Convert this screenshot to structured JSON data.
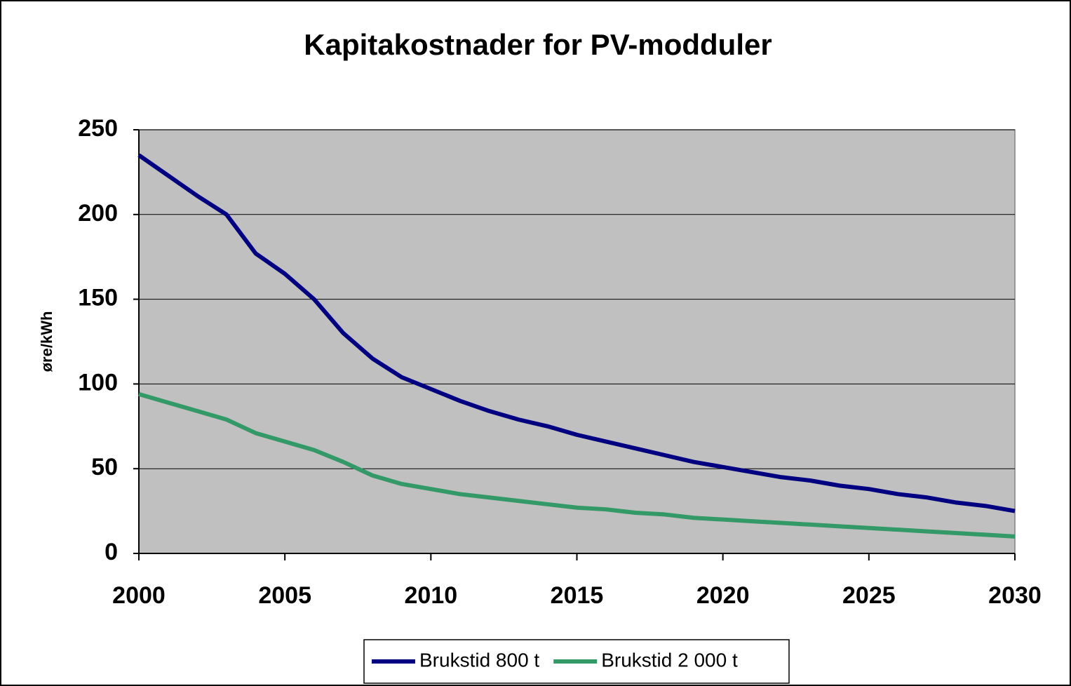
{
  "chart_data": {
    "type": "line",
    "title": "Kapitakostnader for PV-modduler",
    "ylabel": "øre/kWh",
    "x": [
      2000,
      2001,
      2002,
      2003,
      2004,
      2005,
      2006,
      2007,
      2008,
      2009,
      2010,
      2011,
      2012,
      2013,
      2014,
      2015,
      2016,
      2017,
      2018,
      2019,
      2020,
      2021,
      2022,
      2023,
      2024,
      2025,
      2026,
      2027,
      2028,
      2029,
      2030
    ],
    "series": [
      {
        "name": "Brukstid 800 t",
        "color": "#000080",
        "values": [
          235,
          223,
          211,
          200,
          177,
          165,
          150,
          130,
          115,
          104,
          97,
          90,
          84,
          79,
          75,
          70,
          66,
          62,
          58,
          54,
          51,
          48,
          45,
          43,
          40,
          38,
          35,
          33,
          30,
          28,
          25
        ]
      },
      {
        "name": "Brukstid 2 000 t",
        "color": "#339966",
        "values": [
          94,
          89,
          84,
          79,
          71,
          66,
          61,
          54,
          46,
          41,
          38,
          35,
          33,
          31,
          29,
          27,
          26,
          24,
          23,
          21,
          20,
          19,
          18,
          17,
          16,
          15,
          14,
          13,
          12,
          11,
          10
        ]
      }
    ],
    "xlim": [
      2000,
      2030
    ],
    "xticks": [
      2000,
      2005,
      2010,
      2015,
      2020,
      2025,
      2030
    ],
    "ylim": [
      0,
      250
    ],
    "yticks": [
      0,
      50,
      100,
      150,
      200,
      250
    ],
    "grid": true,
    "legend": "bottom",
    "plot_background": "#c0c0c0"
  }
}
